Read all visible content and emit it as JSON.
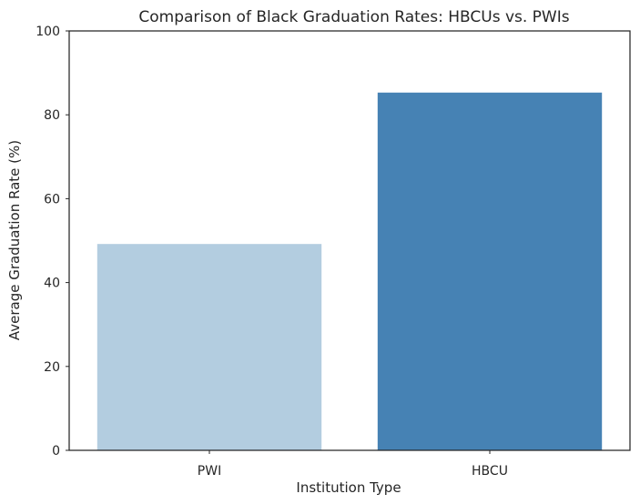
{
  "chart_data": {
    "type": "bar",
    "title": "Comparison of Black Graduation Rates: HBCUs vs. PWIs",
    "xlabel": "Institution Type",
    "ylabel": "Average Graduation Rate (%)",
    "categories": [
      "PWI",
      "HBCU"
    ],
    "values": [
      49.2,
      85.3
    ],
    "colors": [
      "#b3cde0",
      "#4682b4"
    ],
    "ylim": [
      0,
      100
    ],
    "yticks": [
      0,
      20,
      40,
      60,
      80,
      100
    ],
    "grid": false,
    "legend": "none"
  }
}
